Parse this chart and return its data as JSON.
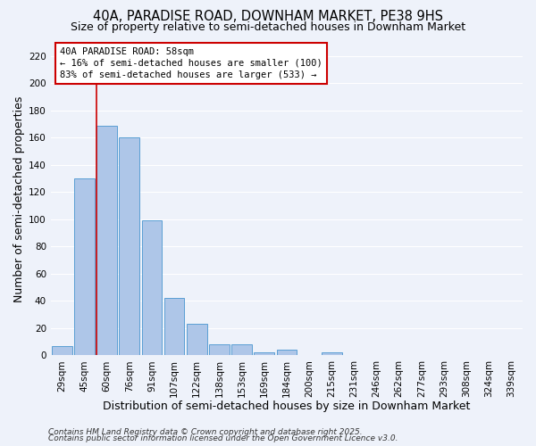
{
  "title": "40A, PARADISE ROAD, DOWNHAM MARKET, PE38 9HS",
  "subtitle": "Size of property relative to semi-detached houses in Downham Market",
  "bar_labels": [
    "29sqm",
    "45sqm",
    "60sqm",
    "76sqm",
    "91sqm",
    "107sqm",
    "122sqm",
    "138sqm",
    "153sqm",
    "169sqm",
    "184sqm",
    "200sqm",
    "215sqm",
    "231sqm",
    "246sqm",
    "262sqm",
    "277sqm",
    "293sqm",
    "308sqm",
    "324sqm",
    "339sqm"
  ],
  "bar_values": [
    7,
    130,
    169,
    160,
    99,
    42,
    23,
    8,
    8,
    2,
    4,
    0,
    2,
    0,
    0,
    0,
    0,
    0,
    0,
    0,
    0
  ],
  "bar_color": "#aec6e8",
  "bar_edge_color": "#5a9fd4",
  "xlabel": "Distribution of semi-detached houses by size in Downham Market",
  "ylabel": "Number of semi-detached properties",
  "ylim": [
    0,
    230
  ],
  "yticks": [
    0,
    20,
    40,
    60,
    80,
    100,
    120,
    140,
    160,
    180,
    200,
    220
  ],
  "annotation_title": "40A PARADISE ROAD: 58sqm",
  "annotation_line1": "← 16% of semi-detached houses are smaller (100)",
  "annotation_line2": "83% of semi-detached houses are larger (533) →",
  "red_line_index": 2,
  "footer_line1": "Contains HM Land Registry data © Crown copyright and database right 2025.",
  "footer_line2": "Contains public sector information licensed under the Open Government Licence v3.0.",
  "background_color": "#eef2fa",
  "grid_color": "#ffffff",
  "annotation_box_facecolor": "#ffffff",
  "annotation_box_edgecolor": "#cc0000",
  "red_line_color": "#cc0000",
  "title_fontsize": 10.5,
  "subtitle_fontsize": 9,
  "axis_label_fontsize": 9,
  "tick_fontsize": 7.5,
  "annotation_fontsize": 7.5,
  "footer_fontsize": 6.5
}
